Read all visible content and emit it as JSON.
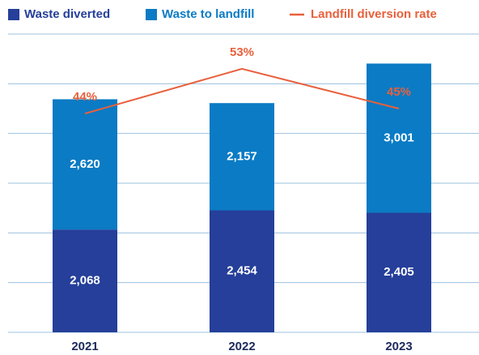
{
  "chart_data": {
    "type": "bar",
    "categories": [
      "2021",
      "2022",
      "2023"
    ],
    "series": [
      {
        "name": "Waste diverted",
        "color": "#253f9a",
        "values": [
          2068,
          2454,
          2405
        ],
        "value_labels": [
          "2,068",
          "2,454",
          "2,405"
        ]
      },
      {
        "name": "Waste to landfill",
        "color": "#0a7bc4",
        "values": [
          2620,
          2157,
          3001
        ],
        "value_labels": [
          "2,620",
          "2,157",
          "3,001"
        ]
      },
      {
        "name": "Landfill diversion rate",
        "color": "#e8603c",
        "type": "line",
        "axis": "y2",
        "values": [
          44,
          53,
          45
        ],
        "value_labels": [
          "44%",
          "53%",
          "45%"
        ]
      }
    ],
    "ylim": [
      0,
      6000
    ],
    "yticks": [
      0,
      1000,
      2000,
      3000,
      4000,
      5000,
      6000
    ],
    "y2lim": [
      0,
      60
    ],
    "grid": true,
    "stacked": true,
    "legend": "top"
  }
}
